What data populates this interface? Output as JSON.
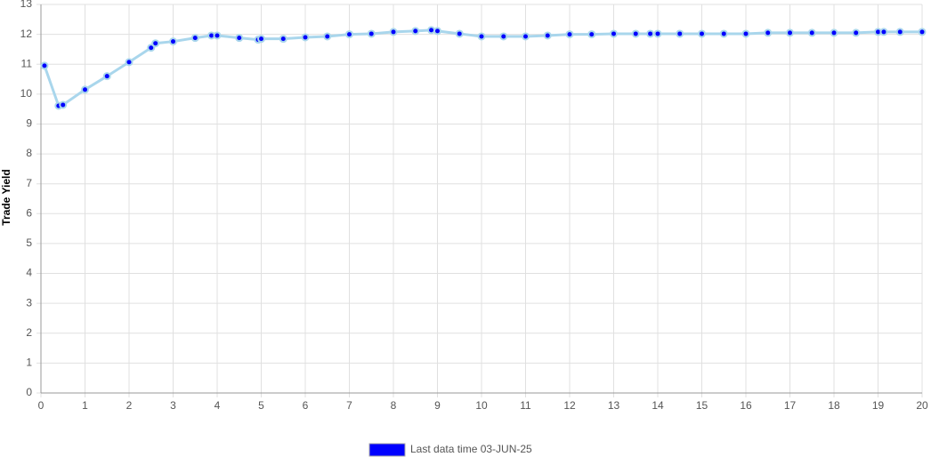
{
  "chart_data": {
    "type": "line",
    "ylabel": "Trade Yield",
    "x": [
      0.08,
      0.4,
      0.5,
      1.0,
      1.5,
      2.0,
      2.5,
      2.6,
      3.0,
      3.5,
      3.87,
      4.0,
      4.5,
      4.93,
      5.0,
      5.5,
      6.0,
      6.5,
      7.0,
      7.5,
      8.0,
      8.5,
      8.86,
      9.0,
      9.5,
      10.0,
      10.5,
      11.0,
      11.5,
      12.0,
      12.5,
      13.0,
      13.5,
      13.83,
      14.0,
      14.5,
      15.0,
      15.5,
      16.0,
      16.5,
      17.0,
      17.5,
      18.0,
      18.5,
      19.0,
      19.13,
      19.5,
      20.0
    ],
    "series": [
      {
        "name": "Last data time 03-JUN-25",
        "color": "#a9d6ec",
        "marker_color": "#0000ff",
        "values": [
          10.95,
          9.61,
          9.64,
          10.15,
          10.6,
          11.07,
          11.55,
          11.7,
          11.76,
          11.88,
          11.96,
          11.96,
          11.88,
          11.82,
          11.85,
          11.85,
          11.9,
          11.93,
          12.0,
          12.02,
          12.08,
          12.11,
          12.14,
          12.11,
          12.02,
          11.93,
          11.93,
          11.93,
          11.96,
          12.0,
          12.0,
          12.02,
          12.02,
          12.02,
          12.02,
          12.02,
          12.02,
          12.02,
          12.02,
          12.05,
          12.05,
          12.05,
          12.05,
          12.05,
          12.08,
          12.08,
          12.08,
          12.08
        ]
      }
    ],
    "xlim": [
      0,
      20
    ],
    "xticks": [
      0,
      1,
      2,
      3,
      4,
      5,
      6,
      7,
      8,
      9,
      10,
      11,
      12,
      13,
      14,
      15,
      16,
      17,
      18,
      19,
      20
    ],
    "ylim": [
      0,
      13
    ],
    "yticks": [
      0,
      1,
      2,
      3,
      4,
      5,
      6,
      7,
      8,
      9,
      10,
      11,
      12,
      13
    ],
    "grid": true,
    "legend": "bottom"
  }
}
